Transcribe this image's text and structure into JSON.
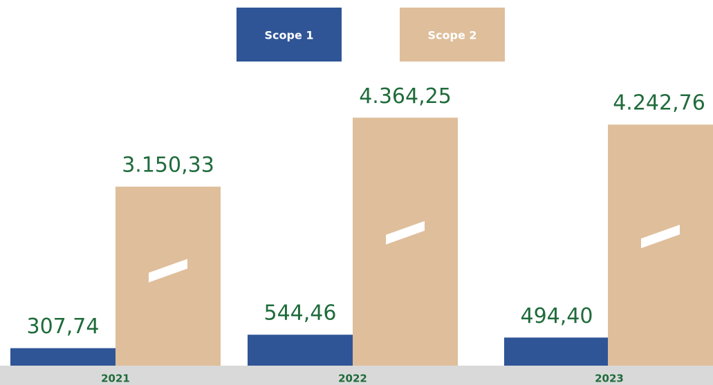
{
  "chart_data": {
    "type": "bar",
    "categories": [
      "2021",
      "2022",
      "2023"
    ],
    "series": [
      {
        "name": "Scope 1",
        "color": "#2f5597",
        "values": [
          307.74,
          544.46,
          494.4
        ],
        "value_labels": [
          "307,74",
          "544,46",
          "494,40"
        ]
      },
      {
        "name": "Scope 2",
        "color": "#dfbe9b",
        "values": [
          3150.33,
          4364.25,
          4242.76
        ],
        "value_labels": [
          "3.150,33",
          "4.364,25",
          "4.242,76"
        ]
      }
    ]
  }
}
